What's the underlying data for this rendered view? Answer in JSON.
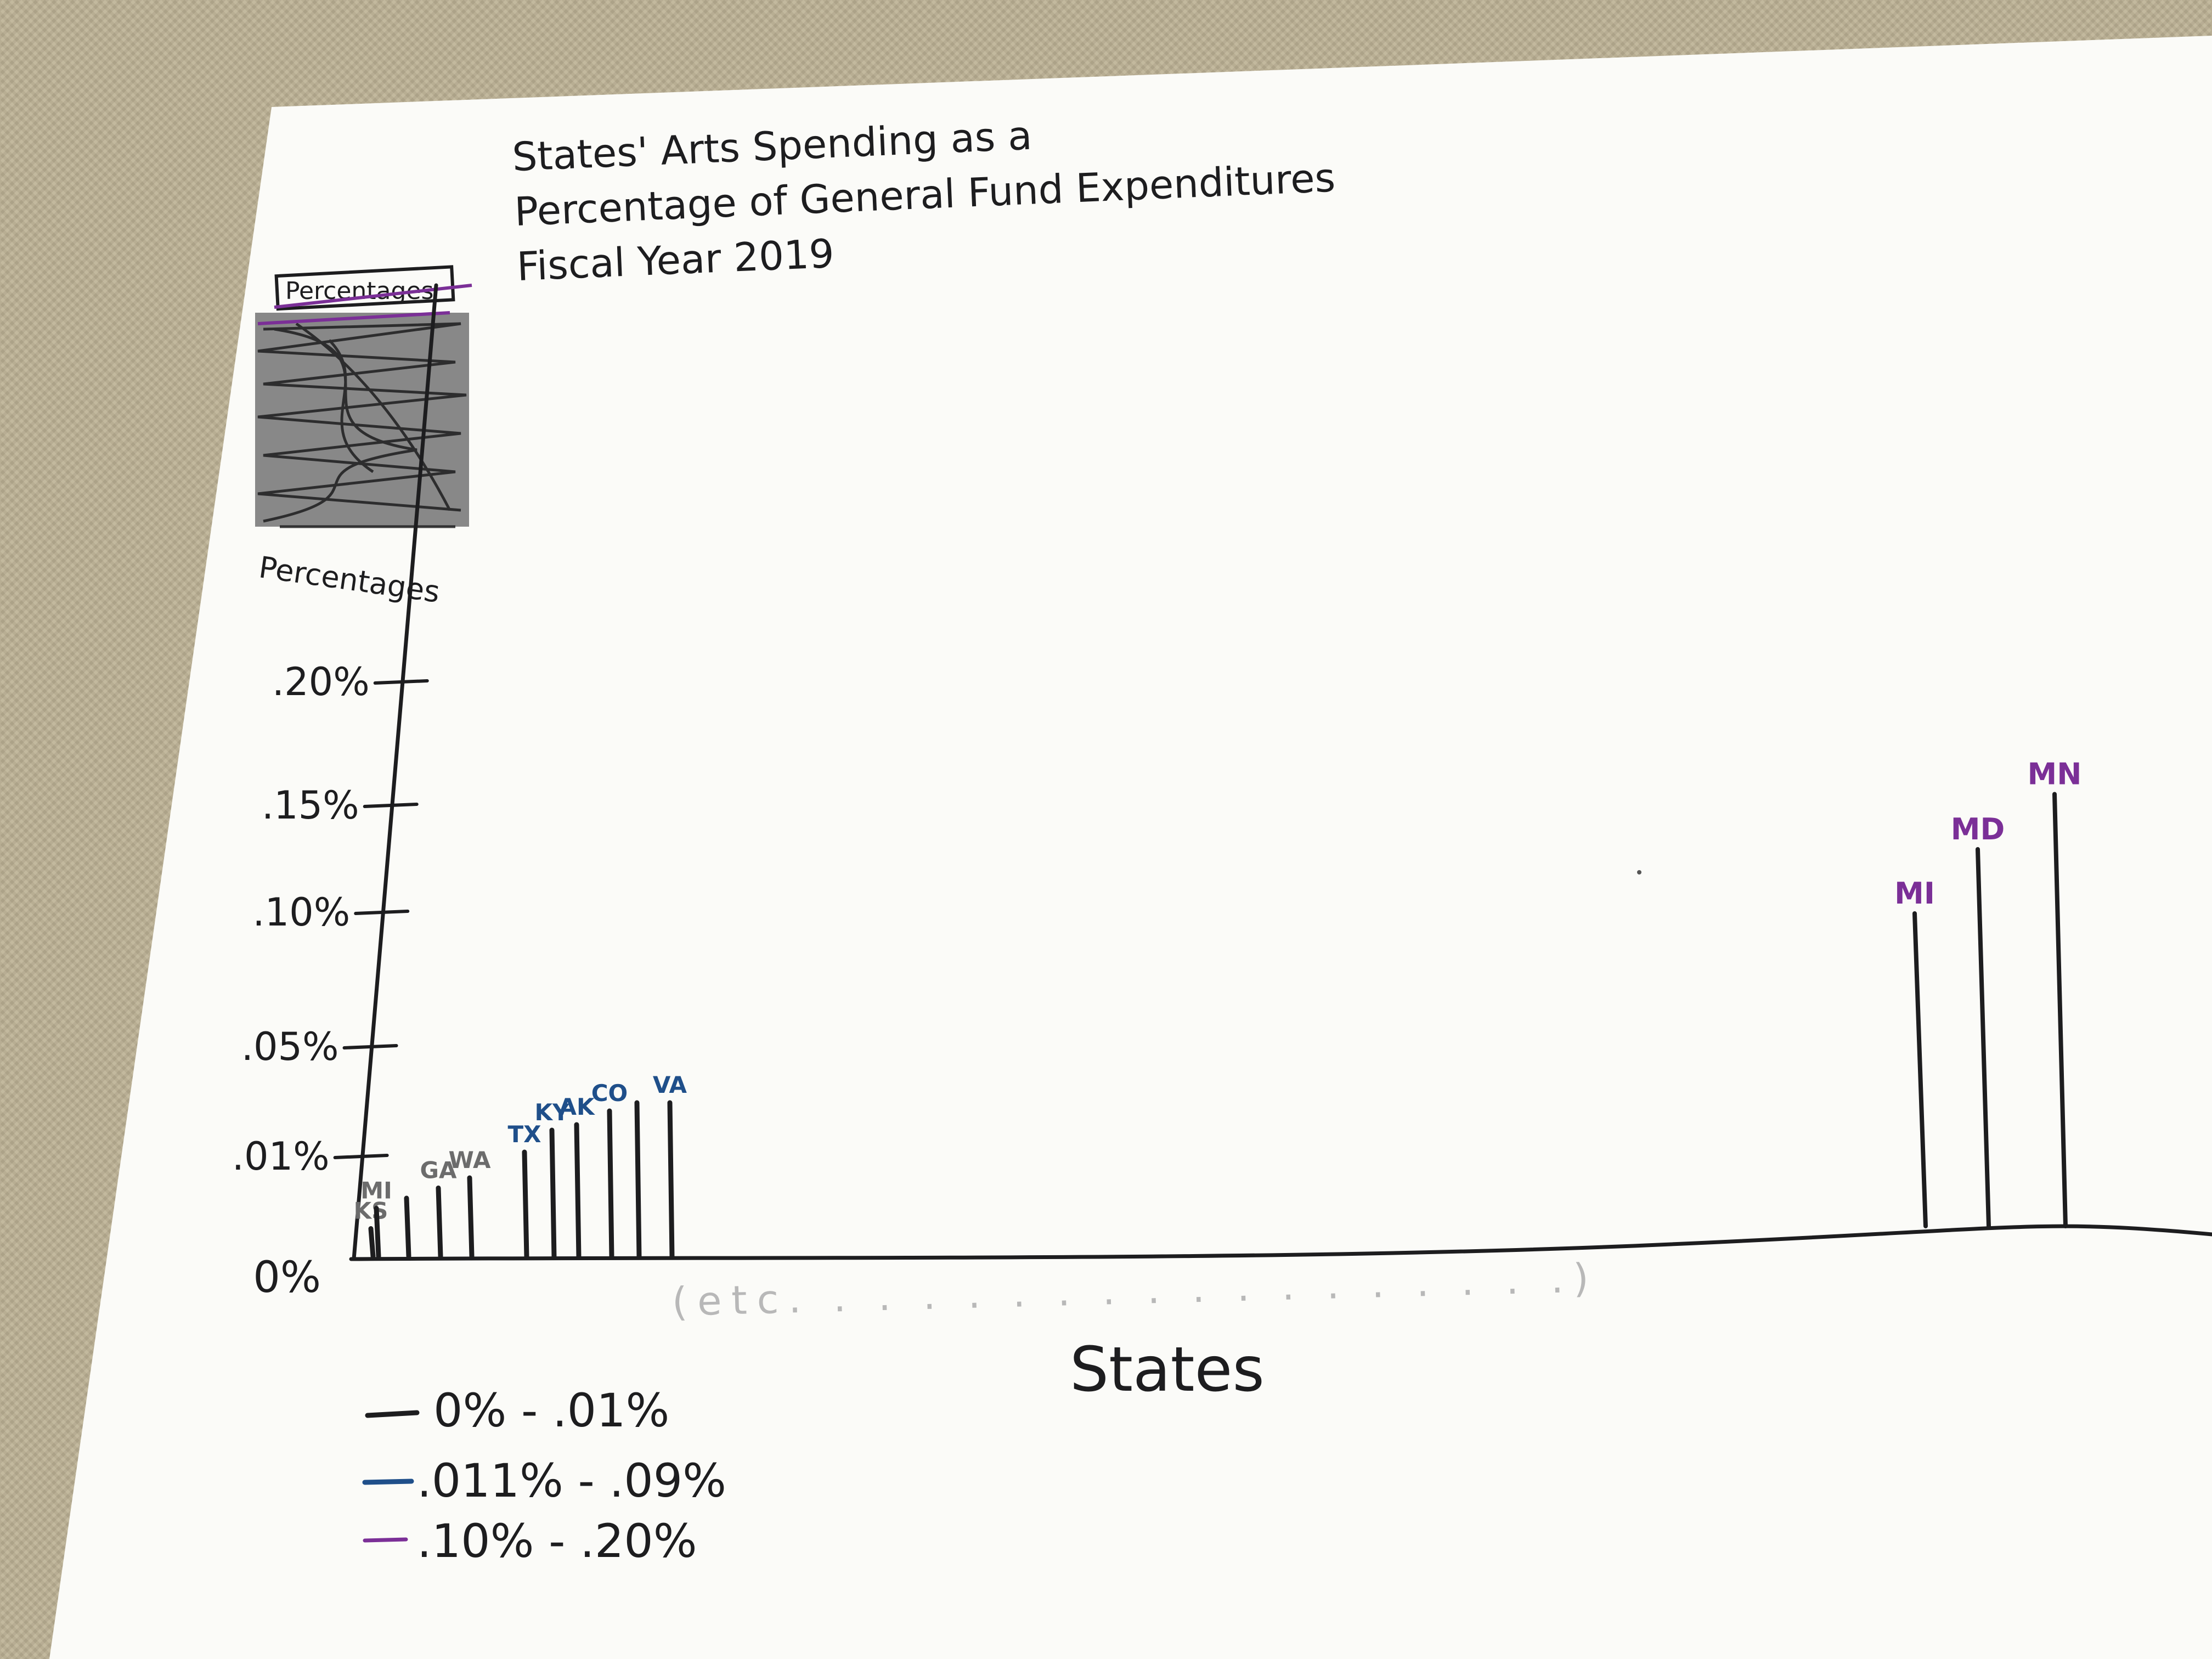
{
  "colors": {
    "black_ink": "#1d1d1f",
    "blue_ink": "#1f4f8a",
    "purple_ink": "#7b2f97",
    "gray_ink": "#6c6c6c",
    "paper": "#fbfbf8"
  },
  "chart_data": {
    "type": "bar",
    "title_lines": [
      "States' Arts Spending as a",
      "Percentage of General Fund Expenditures",
      "Fiscal Year 2019"
    ],
    "ylabel": "Percentages",
    "crossed_out_label": "Percentages",
    "xlabel": "States",
    "x_note": "(etc. . . . . . . . . . . . . . . . . .)",
    "ylim": [
      0,
      0.2
    ],
    "yticks": [
      {
        "label": "0%",
        "value": 0
      },
      {
        "label": ".01%",
        "value": 0.01
      },
      {
        "label": ".05%",
        "value": 0.05
      },
      {
        "label": ".10%",
        "value": 0.1
      },
      {
        "label": ".15%",
        "value": 0.15
      },
      {
        "label": ".20%",
        "value": 0.2
      }
    ],
    "series": [
      {
        "group": "low",
        "legend": "0% - .01%",
        "color": "#1d1d1f",
        "label_color": "#6c6c6c",
        "bars": [
          {
            "label": "KS",
            "value": 0.003
          },
          {
            "label": "MI",
            "value": 0.005
          },
          {
            "label": "",
            "value": 0.006
          },
          {
            "label": "GA",
            "value": 0.007
          },
          {
            "label": "WA",
            "value": 0.008
          }
        ]
      },
      {
        "group": "mid",
        "legend": ".011% - .09%",
        "color": "#1d1d1f",
        "label_color": "#1f4f8a",
        "bars": [
          {
            "label": "TX",
            "value": 0.012
          },
          {
            "label": "KY",
            "value": 0.02
          },
          {
            "label": "AK",
            "value": 0.022
          },
          {
            "label": "CO",
            "value": 0.027
          },
          {
            "label": "",
            "value": 0.03
          },
          {
            "label": "VA",
            "value": 0.03
          }
        ]
      },
      {
        "group": "high",
        "legend": ".10% - .20%",
        "color": "#1d1d1f",
        "label_color": "#7b2f97",
        "bars": [
          {
            "label": "MI",
            "value": 0.1
          },
          {
            "label": "MD",
            "value": 0.13
          },
          {
            "label": "MN",
            "value": 0.155
          }
        ]
      }
    ],
    "legend": [
      {
        "label": "0% - .01%",
        "color": "#1d1d1f"
      },
      {
        "label": ".011% - .09%",
        "color": "#1f4f8a"
      },
      {
        "label": ".10% - .20%",
        "color": "#7b2f97"
      }
    ],
    "legend_position": "bottom-left",
    "grid": false
  }
}
